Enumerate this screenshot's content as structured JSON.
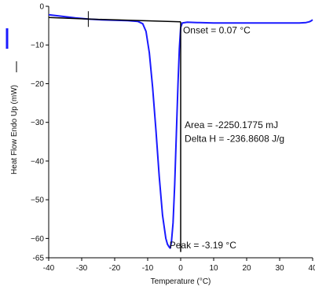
{
  "chart_data": {
    "type": "line",
    "title": "",
    "xlabel": "Temperature (°C)",
    "ylabel": "Heat Flow Endo Up (mW)",
    "xlim": [
      -40,
      40
    ],
    "ylim": [
      -65,
      0
    ],
    "x_ticks": [
      -40,
      -30,
      -20,
      -10,
      0,
      10,
      20,
      30,
      40
    ],
    "x_tick_labels": [
      "-40",
      "-30",
      "-20",
      "-10",
      "0",
      "10",
      "20",
      "30",
      "40"
    ],
    "y_ticks": [
      0,
      -10,
      -20,
      -30,
      -40,
      -50,
      -60,
      -65
    ],
    "y_tick_labels": [
      "0",
      "−10",
      "−20",
      "−30",
      "−40",
      "−50",
      "−60",
      "-65"
    ],
    "grid": false,
    "series": [
      {
        "color": "#1a1aff",
        "x": [
          -40,
          -36,
          -32,
          -28,
          -24,
          -20,
          -16,
          -13,
          -11.5,
          -10.5,
          -9.5,
          -8.5,
          -7.5,
          -6.5,
          -5.5,
          -4.5,
          -4,
          -3.5,
          -3.19,
          -2.8,
          -2.3,
          -1.8,
          -1.3,
          -0.8,
          -0.4,
          0,
          0.5,
          2,
          5,
          10,
          20,
          30,
          36,
          38,
          39,
          39.5,
          40
        ],
        "y": [
          -2.2,
          -2.6,
          -3.0,
          -3.3,
          -3.5,
          -3.6,
          -3.7,
          -3.9,
          -4.5,
          -6.5,
          -12,
          -21,
          -32,
          -44,
          -54,
          -60,
          -61.5,
          -62.2,
          -62.5,
          -61.0,
          -56,
          -46,
          -33,
          -20,
          -11,
          -5.5,
          -4.3,
          -4.1,
          -4.2,
          -4.3,
          -4.3,
          -4.3,
          -4.3,
          -4.2,
          -4.0,
          -3.8,
          -3.5
        ]
      }
    ],
    "baseline_segments": [
      {
        "x": [
          -40,
          -28
        ],
        "y": [
          -2.9,
          -3.3
        ]
      },
      {
        "x": [
          -28,
          0
        ],
        "y": [
          -3.3,
          -4.0
        ]
      }
    ],
    "tick_marks": [
      {
        "x": -28,
        "y": -3.3
      }
    ],
    "vertical_markers": [
      {
        "x": 0,
        "y_from": -4.0,
        "y_to": -63.5
      }
    ],
    "annotations": [
      {
        "text": "Onset = 0.07 °C",
        "x": 0.7,
        "y": -7
      },
      {
        "text": "Area = -2250.1775 mJ",
        "x": 1.2,
        "y": -31.5
      },
      {
        "text": "Delta H = -236.8608 J/g",
        "x": 1.2,
        "y": -35
      },
      {
        "text": "Peak = -3.19 °C",
        "x": -3.4,
        "y": -62.6
      }
    ],
    "legend": {
      "position": "left",
      "color": "#1a1aff"
    }
  }
}
